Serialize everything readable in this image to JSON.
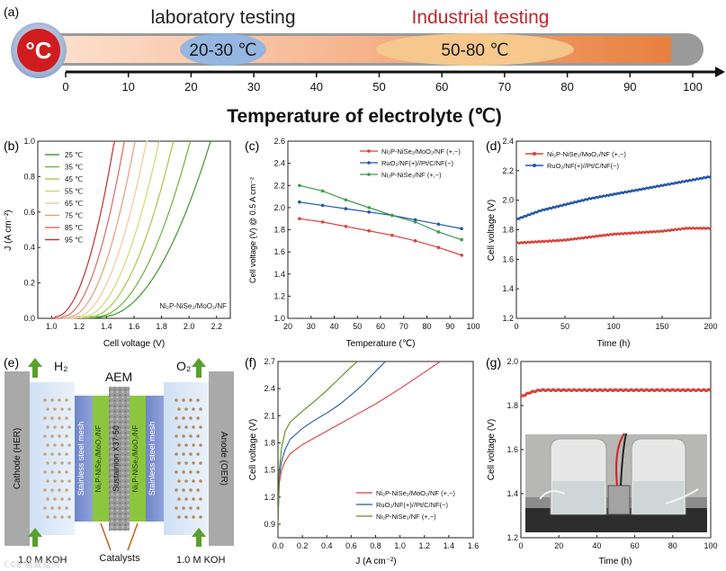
{
  "panel_a": {
    "label": "(a)",
    "badge": "°C",
    "lab_title": "laboratory testing",
    "ind_title": "Industrial testing",
    "lab_range": "20-30 ℃",
    "ind_range": "50-80 ℃",
    "axis_title": "Temperature of electrolyte (℃)",
    "ticks": [
      "0",
      "10",
      "20",
      "30",
      "40",
      "50",
      "60",
      "70",
      "80",
      "90",
      "100"
    ],
    "colors": {
      "title_red": "#c0272d",
      "badge_red": "#d01c1f",
      "bubble_blue": "#8fb5e4",
      "bubble_orange": "#f7c98e"
    }
  },
  "panel_b": {
    "label": "(b)",
    "xlabel": "Cell voltage (V)",
    "ylabel": "J (A cm⁻²)",
    "annotation": "Ni₂P-NiSe₂/MoO₂/NF",
    "xticks": [
      "1.0",
      "1.2",
      "1.4",
      "1.6",
      "1.8",
      "2.0",
      "2.2"
    ],
    "yticks": [
      "0.0",
      "0.2",
      "0.4",
      "0.6",
      "0.8",
      "1.0"
    ],
    "legend": [
      "25 ℃",
      "35 ℃",
      "45 ℃",
      "55 ℃",
      "65 ℃",
      "75 ℃",
      "85 ℃",
      "95 ℃"
    ],
    "colors": [
      "#3a9a2a",
      "#6cb23a",
      "#a5c74c",
      "#cfd873",
      "#f2c79b",
      "#e89b7c",
      "#d86a5e",
      "#c2302c"
    ],
    "onsets": [
      1.72,
      1.68,
      1.63,
      1.58,
      1.53,
      1.48,
      1.43,
      1.38
    ]
  },
  "panel_c": {
    "label": "(c)",
    "xlabel": "Temperature (℃)",
    "ylabel": "Cell voltage (V) @ 0.5 A cm⁻²",
    "xticks": [
      "20",
      "30",
      "40",
      "50",
      "60",
      "70",
      "80",
      "90",
      "100"
    ],
    "yticks": [
      "1.0",
      "1.2",
      "1.4",
      "1.6",
      "1.8",
      "2.0",
      "2.2",
      "2.4",
      "2.6"
    ],
    "chart_data": {
      "type": "line",
      "x": [
        25,
        35,
        45,
        55,
        65,
        75,
        85,
        95
      ],
      "series": [
        {
          "name": "Ni₂P-NiSe₂/MoO₂/NF (+,−)",
          "color": "#d9423b",
          "values": [
            1.9,
            1.87,
            1.83,
            1.79,
            1.75,
            1.7,
            1.64,
            1.57
          ]
        },
        {
          "name": "RuO₂/NF(+)//Pt/C/NF(−)",
          "color": "#2456a8",
          "values": [
            2.05,
            2.02,
            1.99,
            1.96,
            1.93,
            1.89,
            1.85,
            1.81
          ]
        },
        {
          "name": "Ni₂P-NiSe₂/NF (+,−)",
          "color": "#3a9a50",
          "values": [
            2.2,
            2.15,
            2.07,
            2.0,
            1.93,
            1.87,
            1.78,
            1.71
          ]
        }
      ],
      "ylim": [
        1.0,
        2.6
      ],
      "xlim": [
        20,
        100
      ]
    }
  },
  "panel_d": {
    "label": "(d)",
    "xlabel": "Time (h)",
    "ylabel": "Cell voltage (V)",
    "xticks": [
      "0",
      "50",
      "100",
      "150",
      "200"
    ],
    "yticks": [
      "1.2",
      "1.4",
      "1.6",
      "1.8",
      "2.0",
      "2.2",
      "2.4"
    ],
    "legend": [
      "Ni₂P-NiSe₂/MoO₂/NF (+,−)",
      "RuO₂/NF(+)//Pt/C/NF(−)"
    ],
    "colors": [
      "#d9423b",
      "#2456a8"
    ],
    "chart_data": {
      "type": "line",
      "x": [
        0,
        25,
        50,
        75,
        100,
        125,
        150,
        175,
        200
      ],
      "series": [
        {
          "name": "Ni₂P-NiSe₂/MoO₂/NF (+,−)",
          "values": [
            1.71,
            1.72,
            1.73,
            1.75,
            1.77,
            1.78,
            1.79,
            1.81,
            1.81
          ]
        },
        {
          "name": "RuO₂/NF(+)//Pt/C/NF(−)",
          "values": [
            1.87,
            1.93,
            1.97,
            2.01,
            2.04,
            2.07,
            2.1,
            2.13,
            2.16
          ]
        }
      ],
      "ylim": [
        1.2,
        2.4
      ],
      "xlim": [
        0,
        200
      ]
    }
  },
  "panel_e": {
    "label": "(e)",
    "h2": "H₂",
    "o2": "O₂",
    "aem": "AEM",
    "cathode": "Cathode (HER)",
    "anode": "Anode (OER)",
    "mesh": "Stainless steel mesh",
    "catalyst_layer": "Ni₂P-NiSe₂/MoO₂/NF",
    "membrane": "Sustainion X37-50",
    "koh_left": "1.0 M KOH",
    "koh_right": "1.0 M KOH",
    "catalysts": "Catalysts"
  },
  "panel_f": {
    "label": "(f)",
    "xlabel": "J (A cm⁻²)",
    "ylabel": "Cell voltage (V)",
    "xticks": [
      "0.0",
      "0.2",
      "0.4",
      "0.6",
      "0.8",
      "1.0",
      "1.2",
      "1.4",
      "1.6"
    ],
    "yticks": [
      "0.9",
      "1.2",
      "1.5",
      "1.8",
      "2.1",
      "2.4",
      "2.7"
    ],
    "legend": [
      "Ni₂P-NiSe₂/MoO₂/NF (+,−)",
      "RuO₂/NF(+)//Pt/C/NF(−)",
      "Ni₂P-NiSe₂/NF (+,−)"
    ],
    "colors": [
      "#d9423b",
      "#2456a8",
      "#5e8a1e"
    ],
    "chart_data": {
      "type": "line",
      "series": [
        {
          "name": "Ni₂P-NiSe₂/MoO₂/NF (+,−)",
          "x": [
            0,
            0.01,
            0.03,
            0.06,
            0.1,
            0.2,
            0.4,
            0.6,
            0.8,
            1.0,
            1.2,
            1.33
          ],
          "values": [
            0.9,
            1.35,
            1.5,
            1.6,
            1.68,
            1.78,
            1.93,
            2.08,
            2.23,
            2.4,
            2.58,
            2.7
          ]
        },
        {
          "name": "RuO₂/NF(+)//Pt/C/NF(−)",
          "x": [
            0,
            0.01,
            0.03,
            0.06,
            0.1,
            0.2,
            0.3,
            0.4,
            0.5,
            0.6,
            0.7,
            0.8,
            0.88
          ],
          "values": [
            0.9,
            1.42,
            1.6,
            1.73,
            1.84,
            1.96,
            2.05,
            2.13,
            2.22,
            2.33,
            2.45,
            2.59,
            2.7
          ]
        },
        {
          "name": "Ni₂P-NiSe₂/NF (+,−)",
          "x": [
            0,
            0.01,
            0.03,
            0.06,
            0.1,
            0.2,
            0.3,
            0.4,
            0.5,
            0.6,
            0.65
          ],
          "values": [
            0.9,
            1.5,
            1.75,
            1.93,
            2.03,
            2.15,
            2.26,
            2.38,
            2.51,
            2.64,
            2.7
          ]
        }
      ],
      "xlim": [
        0,
        1.6
      ],
      "ylim": [
        0.75,
        2.7
      ]
    }
  },
  "panel_g": {
    "label": "(g)",
    "xlabel": "Time (h)",
    "ylabel": "Cell voltage (V)",
    "xticks": [
      "0",
      "20",
      "40",
      "60",
      "80",
      "100"
    ],
    "yticks": [
      "1.2",
      "1.4",
      "1.6",
      "1.8",
      "2.0"
    ],
    "color": "#d9423b",
    "chart_data": {
      "type": "line",
      "x": [
        0,
        5,
        10,
        20,
        30,
        40,
        50,
        60,
        70,
        80,
        90,
        100
      ],
      "values": [
        1.84,
        1.86,
        1.87,
        1.87,
        1.87,
        1.87,
        1.87,
        1.87,
        1.87,
        1.87,
        1.87,
        1.87
      ],
      "xlim": [
        0,
        100
      ],
      "ylim": [
        1.2,
        2.0
      ]
    }
  },
  "watermark": "ℂ©8 诺威迪讯"
}
